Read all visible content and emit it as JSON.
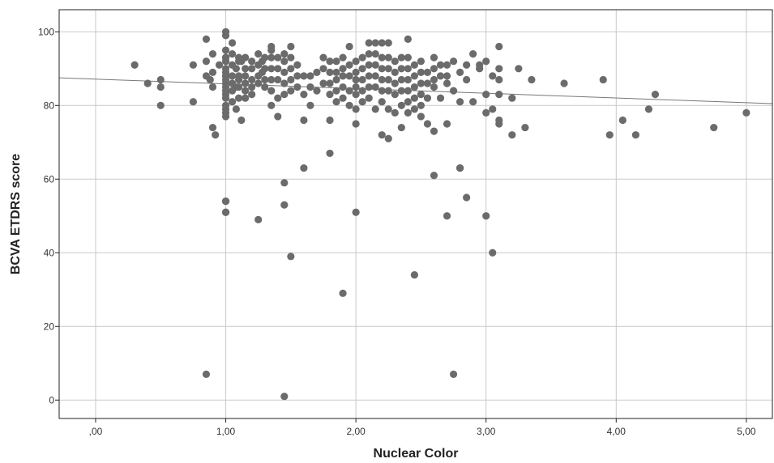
{
  "chart_data": {
    "type": "scatter",
    "title": "",
    "xlabel": "Nuclear Color",
    "ylabel": "BCVA ETDRS score",
    "xlim": [
      -0.28,
      5.2
    ],
    "ylim": [
      -5,
      106
    ],
    "grid": true,
    "legend": "none",
    "x_ticks": [
      0,
      1,
      2,
      3,
      4,
      5
    ],
    "x_tick_labels": [
      ",00",
      "1,00",
      "2,00",
      "3,00",
      "4,00",
      "5,00"
    ],
    "y_ticks": [
      0,
      20,
      40,
      60,
      80,
      100
    ],
    "y_tick_labels": [
      "0",
      "20",
      "40",
      "60",
      "80",
      "100"
    ],
    "fit_line": {
      "x": [
        -0.28,
        5.2
      ],
      "y": [
        87.5,
        80.5
      ]
    },
    "colors": {
      "points": "#6b6b6b",
      "fit_line": "#777777",
      "grid": "#c9c9c9",
      "axis": "#222222"
    },
    "series": [
      {
        "x": [
          0.3,
          0.4,
          0.5,
          0.5,
          0.5,
          0.75,
          0.75,
          0.85,
          0.85,
          0.85,
          0.88,
          0.9,
          0.9,
          0.9,
          0.9,
          0.92,
          0.95,
          1.0,
          1.0,
          1.0,
          1.0,
          1.0,
          1.0,
          1.0,
          1.0,
          1.0,
          1.0,
          1.0,
          1.0,
          1.0,
          1.0,
          1.0,
          1.0,
          1.0,
          1.0,
          1.0,
          1.0,
          1.0,
          1.0,
          1.05,
          1.05,
          1.05,
          1.05,
          1.05,
          1.05,
          1.05,
          1.08,
          1.08,
          1.08,
          1.1,
          1.1,
          1.1,
          1.1,
          1.1,
          1.1,
          1.12,
          1.12,
          1.15,
          1.15,
          1.15,
          1.15,
          1.15,
          1.15,
          1.2,
          1.2,
          1.2,
          1.2,
          1.2,
          1.25,
          1.25,
          1.25,
          1.25,
          1.28,
          1.28,
          1.3,
          1.3,
          1.3,
          1.3,
          1.35,
          1.35,
          1.35,
          1.35,
          1.35,
          1.35,
          1.35,
          1.4,
          1.4,
          1.4,
          1.4,
          1.4,
          1.45,
          1.45,
          1.45,
          1.45,
          1.45,
          1.5,
          1.5,
          1.5,
          1.5,
          1.5,
          1.55,
          1.55,
          1.55,
          1.6,
          1.6,
          1.6,
          1.65,
          1.65,
          1.65,
          1.7,
          1.7,
          1.75,
          1.75,
          1.75,
          1.8,
          1.8,
          1.8,
          1.8,
          1.8,
          1.85,
          1.85,
          1.85,
          1.85,
          1.85,
          1.9,
          1.9,
          1.9,
          1.9,
          1.9,
          1.95,
          1.95,
          1.95,
          1.95,
          1.95,
          2.0,
          2.0,
          2.0,
          2.0,
          2.0,
          2.0,
          2.0,
          2.05,
          2.05,
          2.05,
          2.05,
          2.05,
          2.1,
          2.1,
          2.1,
          2.1,
          2.1,
          2.1,
          2.15,
          2.15,
          2.15,
          2.15,
          2.15,
          2.15,
          2.2,
          2.2,
          2.2,
          2.2,
          2.2,
          2.2,
          2.2,
          2.25,
          2.25,
          2.25,
          2.25,
          2.25,
          2.25,
          2.25,
          2.3,
          2.3,
          2.3,
          2.3,
          2.3,
          2.35,
          2.35,
          2.35,
          2.35,
          2.35,
          2.35,
          2.4,
          2.4,
          2.4,
          2.4,
          2.4,
          2.4,
          2.4,
          2.45,
          2.45,
          2.45,
          2.45,
          2.45,
          2.5,
          2.5,
          2.5,
          2.5,
          2.5,
          2.5,
          2.55,
          2.55,
          2.55,
          2.55,
          2.6,
          2.6,
          2.6,
          2.6,
          2.6,
          2.65,
          2.65,
          2.65,
          2.7,
          2.7,
          2.7,
          2.7,
          2.75,
          2.75,
          2.8,
          2.8,
          2.8,
          2.85,
          2.85,
          2.9,
          2.9,
          2.95,
          2.95,
          3.0,
          3.0,
          3.0,
          3.0,
          3.05,
          3.05,
          3.1,
          3.1,
          3.1,
          3.1,
          3.1,
          3.1,
          3.2,
          3.2,
          3.25,
          3.3,
          3.35,
          3.6,
          3.9,
          3.95,
          4.05,
          4.15,
          4.25,
          4.3,
          4.75,
          5.0,
          1.45,
          1.45,
          1.0,
          1.0,
          1.25,
          1.6,
          1.8,
          2.6,
          2.85,
          2.7,
          2.8,
          2.0,
          1.5,
          1.9,
          2.45,
          3.05,
          0.85,
          2.75,
          1.45
        ],
        "y": [
          91,
          86,
          87,
          85,
          80,
          91,
          81,
          98,
          92,
          88,
          87,
          94,
          89,
          85,
          74,
          72,
          91,
          100,
          99,
          95,
          93,
          92,
          90,
          89,
          88,
          87,
          86,
          85,
          84,
          83,
          82,
          80,
          79,
          78,
          77,
          54,
          51,
          93,
          88,
          97,
          94,
          91,
          88,
          86,
          84,
          81,
          90,
          85,
          79,
          93,
          92,
          88,
          87,
          85,
          82,
          76,
          92,
          93,
          90,
          88,
          86,
          84,
          82,
          92,
          90,
          87,
          85,
          83,
          94,
          91,
          88,
          86,
          92,
          89,
          93,
          90,
          87,
          85,
          96,
          95,
          93,
          90,
          87,
          84,
          80,
          93,
          90,
          87,
          82,
          77,
          94,
          92,
          89,
          86,
          83,
          96,
          93,
          90,
          87,
          84,
          91,
          88,
          85,
          88,
          83,
          76,
          88,
          85,
          80,
          89,
          84,
          93,
          90,
          86,
          92,
          89,
          86,
          83,
          76,
          92,
          89,
          87,
          84,
          81,
          93,
          90,
          88,
          85,
          82,
          96,
          91,
          88,
          84,
          80,
          92,
          89,
          87,
          85,
          83,
          79,
          75,
          93,
          90,
          87,
          84,
          81,
          97,
          94,
          91,
          88,
          85,
          82,
          97,
          94,
          91,
          88,
          85,
          79,
          97,
          93,
          90,
          87,
          84,
          81,
          72,
          97,
          93,
          90,
          87,
          84,
          79,
          71,
          92,
          89,
          86,
          83,
          78,
          93,
          90,
          87,
          84,
          80,
          74,
          98,
          93,
          90,
          87,
          84,
          81,
          78,
          91,
          88,
          85,
          82,
          79,
          92,
          89,
          86,
          83,
          80,
          77,
          89,
          86,
          82,
          75,
          93,
          90,
          87,
          85,
          73,
          91,
          88,
          82,
          91,
          88,
          86,
          75,
          92,
          84,
          89,
          81,
          63,
          91,
          87,
          94,
          81,
          91,
          90,
          92,
          83,
          78,
          50,
          88,
          79,
          96,
          90,
          87,
          83,
          76,
          75,
          82,
          72,
          90,
          74,
          87,
          86,
          87,
          72,
          76,
          72,
          79,
          83,
          74,
          78,
          59,
          53,
          54,
          51,
          49,
          63,
          67,
          61,
          55,
          50,
          63,
          51,
          39,
          29,
          34,
          40,
          7,
          7,
          1
        ]
      }
    ]
  }
}
